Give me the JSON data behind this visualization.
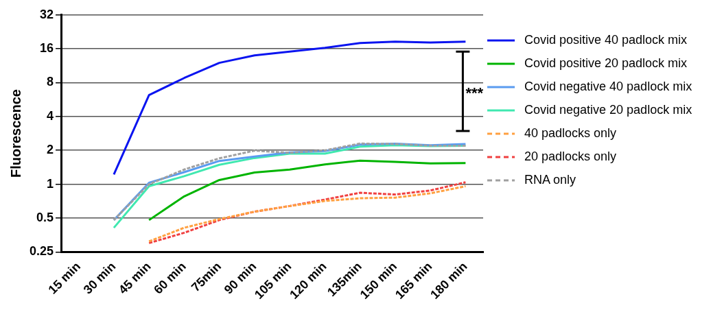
{
  "chart_data": {
    "type": "line",
    "ylabel": "Fluorescence",
    "categories": [
      "15 min",
      "30 min",
      "45 min",
      "60 min",
      "75min",
      "90 min",
      "105 min",
      "120 min",
      "135min",
      "150 min",
      "165 min",
      "180 min"
    ],
    "series": [
      {
        "name": "Covid positive 40 padlock mix",
        "color": "#0a14f0",
        "values": [
          null,
          1.22,
          6.2,
          8.8,
          12,
          14,
          15.1,
          16.3,
          18,
          18.5,
          18.2,
          18.5
        ]
      },
      {
        "name": "Covid positive 20 padlock mix",
        "color": "#00b400",
        "values": [
          null,
          null,
          0.48,
          0.78,
          1.09,
          1.27,
          1.35,
          1.5,
          1.62,
          1.58,
          1.53,
          1.54
        ]
      },
      {
        "name": "Covid negative 40 padlock mix",
        "color": "#5a9bf0",
        "values": [
          null,
          0.48,
          1.03,
          1.28,
          1.61,
          1.76,
          1.92,
          1.97,
          2.25,
          2.29,
          2.22,
          2.28
        ]
      },
      {
        "name": "Covid negative 20 padlock mix",
        "color": "#40e8b0",
        "values": [
          null,
          0.41,
          0.96,
          1.18,
          1.49,
          1.71,
          1.87,
          1.87,
          2.16,
          2.22,
          2.18,
          2.2
        ]
      },
      {
        "name": "40 padlocks only",
        "color": "#ffa040",
        "line_style": "dashed",
        "values": [
          null,
          null,
          0.31,
          0.41,
          0.49,
          0.57,
          0.64,
          0.71,
          0.75,
          0.76,
          0.83,
          0.96
        ]
      },
      {
        "name": "20 padlocks only",
        "color": "#f04040",
        "line_style": "dashed",
        "values": [
          null,
          null,
          0.3,
          0.37,
          0.48,
          0.57,
          0.64,
          0.73,
          0.84,
          0.81,
          0.88,
          1.04
        ]
      },
      {
        "name": "RNA only",
        "color": "#a0a0a0",
        "line_style": "dashed",
        "values": [
          null,
          0.48,
          1.0,
          1.35,
          1.7,
          1.99,
          1.9,
          2.0,
          2.3,
          2.28,
          2.2,
          2.2
        ]
      }
    ],
    "log": true,
    "ylim": [
      0.25,
      32
    ],
    "yticks": [
      0.25,
      0.5,
      1,
      2,
      4,
      8,
      16,
      32
    ],
    "grid": "y",
    "legend": "right",
    "marker": "none",
    "annotations": [
      "***"
    ]
  }
}
